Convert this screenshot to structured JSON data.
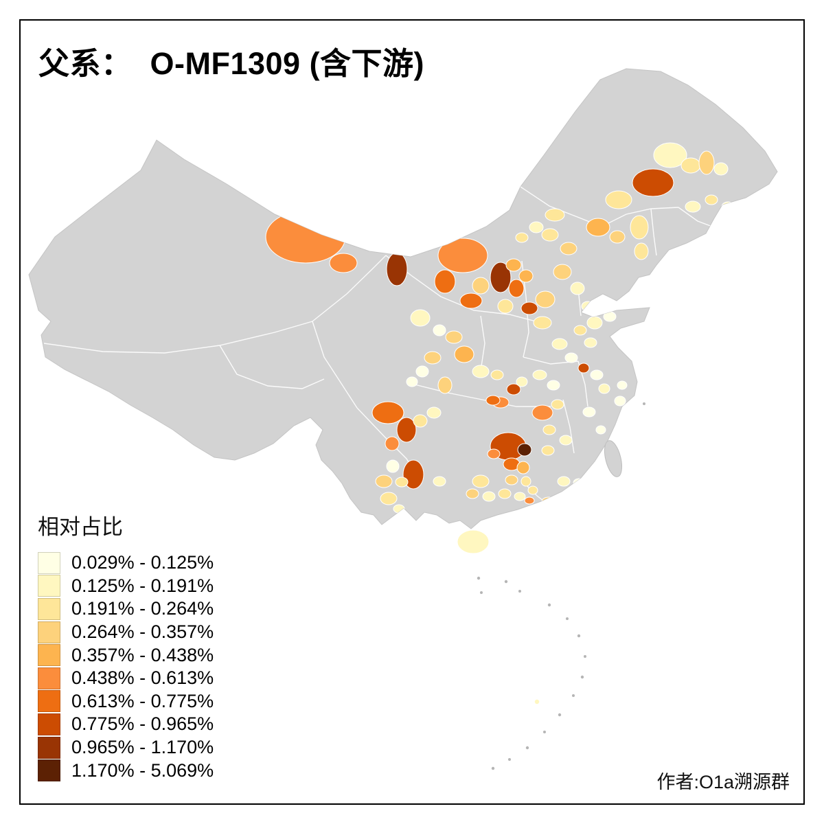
{
  "title": "父系：  O-MF1309 (含下游)",
  "legend": {
    "title": "相对占比",
    "items": [
      {
        "label": "0.029% - 0.125%",
        "color": "#FFFFE5"
      },
      {
        "label": "0.125% - 0.191%",
        "color": "#FFF7C0"
      },
      {
        "label": "0.191% - 0.264%",
        "color": "#FEE699"
      },
      {
        "label": "0.264% - 0.357%",
        "color": "#FDD27C"
      },
      {
        "label": "0.357% - 0.438%",
        "color": "#FDB44F"
      },
      {
        "label": "0.438% - 0.613%",
        "color": "#FB8D3C"
      },
      {
        "label": "0.613% - 0.775%",
        "color": "#EE6E12"
      },
      {
        "label": "0.775% - 0.965%",
        "color": "#CC4C02"
      },
      {
        "label": "0.965% - 1.170%",
        "color": "#993404"
      },
      {
        "label": "1.170% - 5.069%",
        "color": "#5C2104"
      }
    ]
  },
  "credit": "作者:O1a溯源群",
  "map": {
    "no_data_color": "#d3d3d3",
    "boundary_color": "#ffffff",
    "island_color": "#b5b5b5",
    "frame_color": "#000000"
  }
}
